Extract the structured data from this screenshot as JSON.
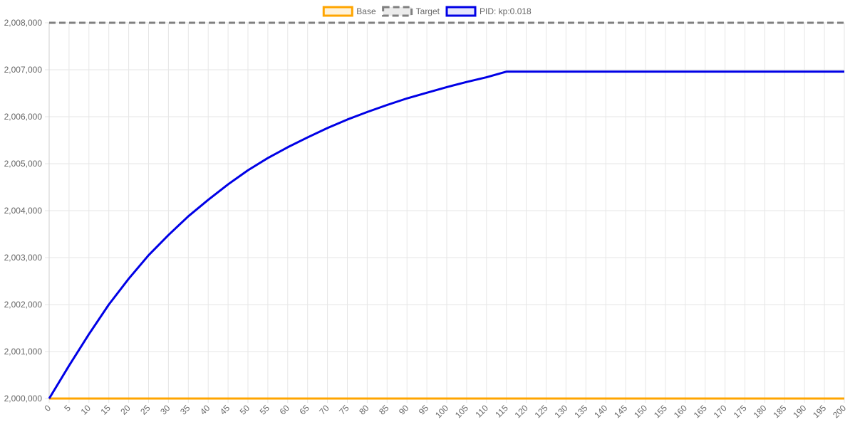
{
  "chart_data": {
    "type": "line",
    "title": "",
    "xlabel": "",
    "ylabel": "",
    "legend_position": "top",
    "grid": true,
    "xlim": [
      0,
      200
    ],
    "ylim": [
      2000000,
      2008000
    ],
    "x_ticks": [
      "0",
      "5",
      "10",
      "15",
      "20",
      "25",
      "30",
      "35",
      "40",
      "45",
      "50",
      "55",
      "60",
      "65",
      "70",
      "75",
      "80",
      "85",
      "90",
      "95",
      "100",
      "105",
      "110",
      "115",
      "120",
      "125",
      "130",
      "135",
      "140",
      "145",
      "150",
      "155",
      "160",
      "165",
      "170",
      "175",
      "180",
      "185",
      "190",
      "195",
      "200"
    ],
    "y_ticks": [
      "2,000,000",
      "2,001,000",
      "2,002,000",
      "2,003,000",
      "2,004,000",
      "2,005,000",
      "2,006,000",
      "2,007,000",
      "2,008,000"
    ],
    "series": [
      {
        "name": "Base",
        "color": "#ffa500",
        "dashed": false,
        "points": [
          [
            0,
            2000000
          ],
          [
            200,
            2000000
          ]
        ]
      },
      {
        "name": "Target",
        "color": "#808080",
        "dashed": true,
        "points": [
          [
            0,
            2008000
          ],
          [
            200,
            2008000
          ]
        ]
      },
      {
        "name": "PID: kp:0.018",
        "color": "#0000e6",
        "dashed": false,
        "points": [
          [
            0,
            2000000
          ],
          [
            5,
            2000700
          ],
          [
            10,
            2001370
          ],
          [
            15,
            2002000
          ],
          [
            20,
            2002550
          ],
          [
            25,
            2003050
          ],
          [
            30,
            2003480
          ],
          [
            35,
            2003880
          ],
          [
            40,
            2004230
          ],
          [
            45,
            2004560
          ],
          [
            50,
            2004860
          ],
          [
            55,
            2005120
          ],
          [
            60,
            2005350
          ],
          [
            65,
            2005560
          ],
          [
            70,
            2005760
          ],
          [
            75,
            2005940
          ],
          [
            80,
            2006100
          ],
          [
            85,
            2006250
          ],
          [
            90,
            2006390
          ],
          [
            95,
            2006510
          ],
          [
            100,
            2006630
          ],
          [
            105,
            2006740
          ],
          [
            110,
            2006840
          ],
          [
            115,
            2006960
          ],
          [
            120,
            2006960
          ],
          [
            150,
            2006960
          ],
          [
            200,
            2006960
          ]
        ]
      }
    ]
  }
}
